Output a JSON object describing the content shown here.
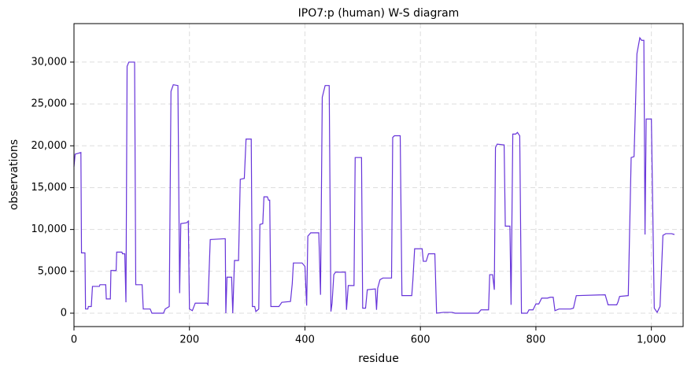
{
  "chart_data": {
    "type": "line",
    "title": "IPO7:p (human) W-S diagram",
    "x_label": "residue",
    "y_label": "observations",
    "x": [
      0,
      2,
      12,
      13,
      19,
      20,
      24,
      25,
      30,
      32,
      44,
      45,
      55,
      56,
      63,
      64,
      73,
      74,
      83,
      84,
      88,
      90,
      92,
      95,
      105,
      107,
      118,
      120,
      132,
      135,
      155,
      158,
      165,
      168,
      172,
      180,
      183,
      185,
      195,
      198,
      200,
      205,
      210,
      230,
      232,
      236,
      262,
      263,
      265,
      273,
      275,
      278,
      285,
      288,
      295,
      298,
      307,
      309,
      313,
      315,
      320,
      322,
      327,
      329,
      335,
      337,
      339,
      341,
      355,
      360,
      375,
      378,
      380,
      395,
      400,
      403,
      405,
      410,
      424,
      427,
      430,
      435,
      442,
      445,
      447,
      450,
      453,
      470,
      472,
      475,
      485,
      487,
      498,
      500,
      505,
      508,
      522,
      524,
      526,
      530,
      535,
      550,
      552,
      555,
      565,
      568,
      585,
      587,
      590,
      603,
      605,
      610,
      614,
      625,
      628,
      640,
      655,
      660,
      700,
      705,
      718,
      720,
      725,
      728,
      730,
      733,
      745,
      747,
      755,
      757,
      760,
      765,
      768,
      772,
      775,
      785,
      788,
      795,
      800,
      805,
      810,
      820,
      825,
      830,
      833,
      840,
      860,
      865,
      870,
      920,
      925,
      940,
      942,
      945,
      960,
      965,
      970,
      975,
      980,
      983,
      987,
      989,
      991,
      1000,
      1005,
      1010,
      1015,
      1020,
      1025,
      1035,
      1040
    ],
    "series": [
      {
        "name": "observations",
        "color": "#6633d9",
        "values": [
          17500,
          19000,
          19200,
          7200,
          7200,
          500,
          500,
          800,
          800,
          3200,
          3200,
          3400,
          3400,
          1700,
          1700,
          5100,
          5100,
          7300,
          7300,
          7100,
          7100,
          1300,
          29500,
          30000,
          30000,
          3400,
          3400,
          500,
          500,
          0,
          0,
          500,
          800,
          26500,
          27300,
          27200,
          2400,
          10700,
          10800,
          11000,
          500,
          300,
          1200,
          1200,
          1000,
          8800,
          8900,
          0,
          4300,
          4300,
          0,
          6300,
          6300,
          16000,
          16100,
          20800,
          20800,
          800,
          800,
          200,
          500,
          10600,
          10700,
          13900,
          13900,
          13500,
          13500,
          800,
          800,
          1300,
          1400,
          3500,
          6000,
          6000,
          5600,
          900,
          9200,
          9600,
          9600,
          2200,
          25800,
          27200,
          27200,
          200,
          1200,
          4600,
          4900,
          4900,
          400,
          3300,
          3300,
          18600,
          18600,
          600,
          600,
          2800,
          2900,
          400,
          3000,
          4000,
          4200,
          4200,
          21000,
          21200,
          21200,
          2100,
          2100,
          4000,
          7700,
          7700,
          6200,
          6200,
          7100,
          7100,
          0,
          100,
          100,
          0,
          0,
          400,
          400,
          4600,
          4600,
          2800,
          19800,
          20200,
          20100,
          10400,
          10400,
          1000,
          21400,
          21400,
          21600,
          21200,
          0,
          0,
          400,
          400,
          1100,
          1100,
          1800,
          1800,
          1900,
          1900,
          300,
          500,
          500,
          600,
          2100,
          2200,
          1000,
          1000,
          1300,
          2000,
          2100,
          18600,
          18700,
          31000,
          32900,
          32600,
          32600,
          9400,
          23200,
          23200,
          600,
          100,
          800,
          9300,
          9500,
          9500,
          9400
        ]
      }
    ],
    "xlim": [
      0,
      1055
    ],
    "ylim": [
      -1600,
      34600
    ],
    "xticks": [
      0,
      200,
      400,
      600,
      800,
      {
        "value": 1000,
        "label": "1,000"
      }
    ],
    "yticks": [
      0,
      {
        "value": 5000,
        "label": "5,000"
      },
      {
        "value": 10000,
        "label": "10,000"
      },
      {
        "value": 15000,
        "label": "15,000"
      },
      {
        "value": 20000,
        "label": "20,000"
      },
      {
        "value": 25000,
        "label": "25,000"
      },
      {
        "value": 30000,
        "label": "30,000"
      }
    ],
    "grid": true
  }
}
